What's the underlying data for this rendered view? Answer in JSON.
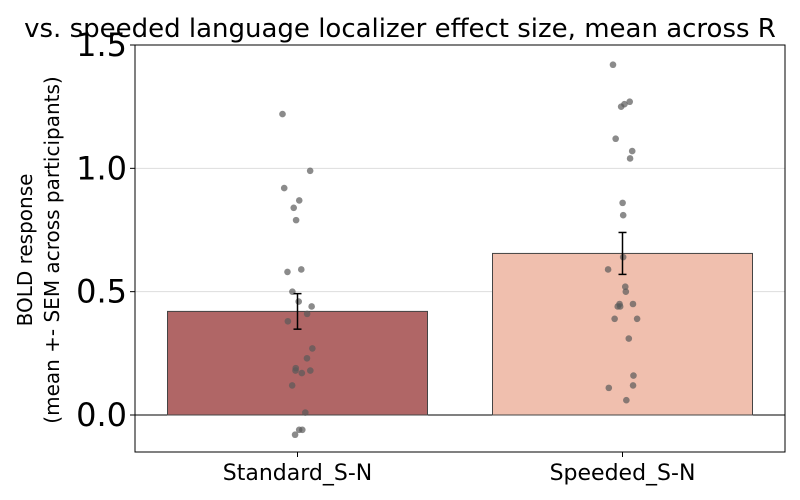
{
  "chart_data": {
    "type": "bar",
    "title": "vs. speeded language localizer effect size, mean across R",
    "ylabel_line1": "BOLD response",
    "ylabel_line2": "(mean +- SEM across participants)",
    "ylim": [
      -0.15,
      1.5
    ],
    "yticks": [
      "0.0",
      "0.5",
      "1.0",
      "1.5"
    ],
    "ytick_values": [
      0.0,
      0.5,
      1.0,
      1.5
    ],
    "grid": "horizontal",
    "categories": [
      "Standard_S-N",
      "Speeded_S-N"
    ],
    "values": [
      0.42,
      0.655
    ],
    "sem": [
      0.072,
      0.085
    ],
    "bar_colors": [
      "#b06666",
      "#f0bfae"
    ],
    "points": [
      [
        1.22,
        0.99,
        0.92,
        0.87,
        0.84,
        0.79,
        0.59,
        0.58,
        0.5,
        0.46,
        0.44,
        0.41,
        0.38,
        0.27,
        0.23,
        0.19,
        0.18,
        0.18,
        0.17,
        0.12,
        0.01,
        -0.06,
        -0.06,
        -0.08
      ],
      [
        1.42,
        1.27,
        1.26,
        1.25,
        1.12,
        1.07,
        1.04,
        0.86,
        0.81,
        0.64,
        0.59,
        0.52,
        0.5,
        0.45,
        0.45,
        0.44,
        0.44,
        0.39,
        0.39,
        0.31,
        0.16,
        0.12,
        0.11,
        0.06
      ]
    ]
  }
}
